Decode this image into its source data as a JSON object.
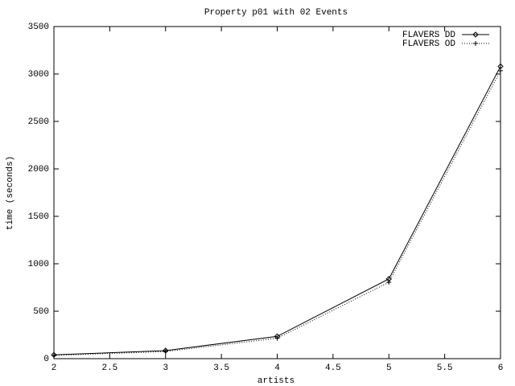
{
  "chart_data": {
    "type": "line",
    "title": "Property p01 with 02 Events",
    "x_label": "artists",
    "y_label": "time (seconds)",
    "x": [
      2,
      3,
      4,
      5,
      6
    ],
    "series": [
      {
        "name": "FLAVERS DD",
        "color": "#000000",
        "line_style": "solid",
        "marker": "diamond",
        "values": [
          40,
          85,
          235,
          840,
          3080
        ]
      },
      {
        "name": "FLAVERS OD",
        "color": "#000000",
        "line_style": "dotted",
        "marker": "plus",
        "values": [
          35,
          75,
          215,
          805,
          3035
        ]
      }
    ],
    "xlim": [
      2,
      6
    ],
    "xticks": [
      2,
      2.5,
      3,
      3.5,
      4,
      4.5,
      5,
      5.5,
      6
    ],
    "ylim": [
      0,
      3500
    ],
    "yticks": [
      0,
      500,
      1000,
      1500,
      2000,
      2500,
      3000,
      3500
    ],
    "legend": "top-right"
  }
}
